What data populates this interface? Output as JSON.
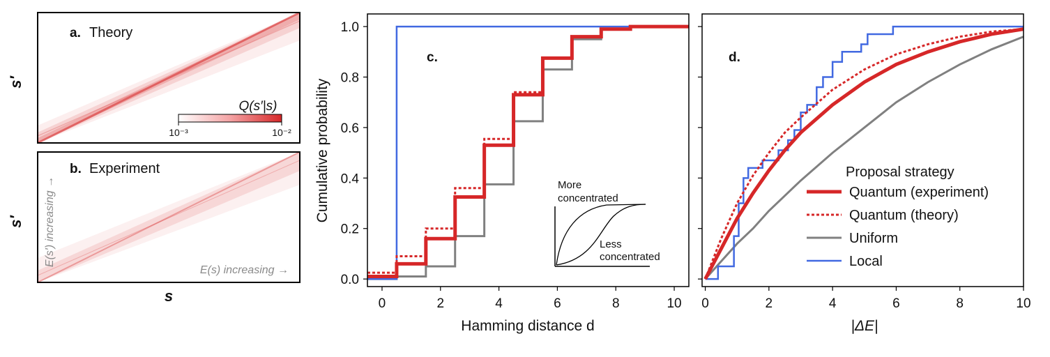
{
  "colors": {
    "quantum_experiment": "#d62728",
    "quantum_theory": "#d62728",
    "uniform": "#808080",
    "local": "#4169e1",
    "heatmap_low": "#ffffff",
    "heatmap_high": "#d62728"
  },
  "panel_a": {
    "letter": "a.",
    "title": "Theory",
    "ylabel": "s′",
    "colorbar_label": "Q(s′|s)",
    "colorbar_ticks": [
      "10⁻³",
      "10⁻²"
    ]
  },
  "panel_b": {
    "letter": "b.",
    "title": "Experiment",
    "ylabel": "s′",
    "xlabel": "s",
    "vertical_note": "E(s′) increasing →",
    "horizontal_note": "E(s) increasing →"
  },
  "panel_c": {
    "letter": "c.",
    "xlabel": "Hamming distance d",
    "ylabel": "Cumulative probability",
    "inset": {
      "top_label_1": "More",
      "top_label_2": "concentrated",
      "bottom_label_1": "Less",
      "bottom_label_2": "concentrated"
    }
  },
  "panel_d": {
    "letter": "d.",
    "xlabel": "|ΔE|"
  },
  "legend": {
    "title": "Proposal strategy",
    "items": [
      {
        "label": "Quantum (experiment)",
        "style": "solid-thick",
        "color": "#d62728"
      },
      {
        "label": "Quantum (theory)",
        "style": "dotted",
        "color": "#d62728"
      },
      {
        "label": "Uniform",
        "style": "solid",
        "color": "#808080"
      },
      {
        "label": "Local",
        "style": "solid",
        "color": "#4169e1"
      }
    ]
  },
  "chart_data": [
    {
      "type": "heatmap",
      "panel": "a",
      "title": "Theory",
      "ylabel": "s′",
      "colorbar": {
        "label": "Q(s′|s)",
        "scale": "log",
        "range": [
          0.001,
          0.01
        ],
        "ticks": [
          "10⁻³",
          "10⁻²"
        ]
      },
      "description_values": {
        "diagonal_band": "concentrated along s′ = s"
      }
    },
    {
      "type": "heatmap",
      "panel": "b",
      "title": "Experiment",
      "xlabel": "s",
      "ylabel": "s′"
    },
    {
      "type": "line",
      "panel": "c",
      "xlabel": "Hamming distance d",
      "ylabel": "Cumulative probability",
      "xlim": [
        -0.5,
        10.5
      ],
      "ylim": [
        -0.03,
        1.05
      ],
      "xticks": [
        0,
        2,
        4,
        6,
        8,
        10
      ],
      "yticks": [
        0.0,
        0.2,
        0.4,
        0.6,
        0.8,
        1.0
      ],
      "step": true,
      "series": [
        {
          "name": "Quantum (experiment)",
          "x": [
            0,
            1,
            2,
            3,
            4,
            5,
            6,
            7,
            8,
            9,
            10
          ],
          "y": [
            0.01,
            0.06,
            0.16,
            0.325,
            0.53,
            0.73,
            0.875,
            0.96,
            0.99,
            1.0,
            1.0
          ]
        },
        {
          "name": "Quantum (theory)",
          "x": [
            0,
            1,
            2,
            3,
            4,
            5,
            6,
            7,
            8,
            9,
            10
          ],
          "y": [
            0.025,
            0.09,
            0.2,
            0.36,
            0.555,
            0.74,
            0.875,
            0.96,
            0.99,
            1.0,
            1.0
          ]
        },
        {
          "name": "Uniform",
          "x": [
            0,
            1,
            2,
            3,
            4,
            5,
            6,
            7,
            8,
            9,
            10
          ],
          "y": [
            0.0,
            0.01,
            0.05,
            0.17,
            0.375,
            0.625,
            0.83,
            0.95,
            0.99,
            1.0,
            1.0
          ]
        },
        {
          "name": "Local",
          "x": [
            0,
            1,
            2,
            3,
            4,
            5,
            6,
            7,
            8,
            9,
            10
          ],
          "y": [
            0.0,
            1.0,
            1.0,
            1.0,
            1.0,
            1.0,
            1.0,
            1.0,
            1.0,
            1.0,
            1.0
          ]
        }
      ]
    },
    {
      "type": "line",
      "panel": "d",
      "xlabel": "|ΔE|",
      "xlim": [
        -0.1,
        10
      ],
      "ylim": [
        -0.03,
        1.05
      ],
      "xticks": [
        0,
        2,
        4,
        6,
        8,
        10
      ],
      "series": [
        {
          "name": "Quantum (experiment)",
          "x": [
            0,
            0.5,
            1,
            1.5,
            2,
            2.5,
            3,
            4,
            5,
            6,
            7,
            8,
            9,
            10
          ],
          "y": [
            0,
            0.12,
            0.24,
            0.34,
            0.43,
            0.51,
            0.58,
            0.69,
            0.78,
            0.85,
            0.9,
            0.94,
            0.97,
            0.99
          ]
        },
        {
          "name": "Quantum (theory)",
          "x": [
            0,
            0.5,
            1,
            1.5,
            2,
            2.5,
            3,
            4,
            5,
            6,
            7,
            8,
            9,
            10
          ],
          "y": [
            0,
            0.16,
            0.3,
            0.41,
            0.5,
            0.58,
            0.64,
            0.75,
            0.83,
            0.89,
            0.93,
            0.96,
            0.98,
            0.99
          ]
        },
        {
          "name": "Uniform",
          "x": [
            0,
            0.5,
            1,
            1.5,
            2,
            2.5,
            3,
            4,
            5,
            6,
            7,
            8,
            9,
            10
          ],
          "y": [
            0,
            0.07,
            0.14,
            0.2,
            0.27,
            0.33,
            0.39,
            0.5,
            0.6,
            0.7,
            0.78,
            0.85,
            0.91,
            0.96
          ]
        },
        {
          "name": "Local",
          "step": true,
          "x": [
            0,
            0.4,
            0.9,
            1.05,
            1.2,
            1.35,
            1.8,
            2.3,
            2.6,
            2.8,
            3.0,
            3.2,
            3.5,
            3.7,
            4.0,
            4.3,
            4.9,
            5.1,
            5.9,
            10
          ],
          "y": [
            0,
            0.05,
            0.17,
            0.3,
            0.4,
            0.44,
            0.47,
            0.51,
            0.55,
            0.59,
            0.66,
            0.69,
            0.76,
            0.8,
            0.86,
            0.9,
            0.93,
            0.97,
            1.0,
            1.0
          ]
        }
      ]
    }
  ]
}
